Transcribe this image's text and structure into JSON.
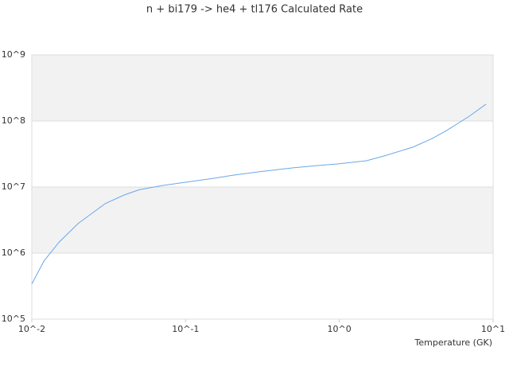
{
  "chart_data": {
    "type": "line",
    "title": "n + bi179 -> he4 + tl176 Calculated Rate",
    "x_label": "Temperature (GK)",
    "x_log": true,
    "y_log": true,
    "grid": true,
    "band_color": "#f2f2f2",
    "xlim": [
      0.01,
      10
    ],
    "xticks": [
      {
        "value": 0.01,
        "label": "10^-2"
      },
      {
        "value": 0.1,
        "label": "10^-1"
      },
      {
        "value": 1,
        "label": "10^0"
      },
      {
        "value": 10,
        "label": "10^1"
      }
    ],
    "ylim": [
      100000,
      1000000000
    ],
    "yticks": [
      {
        "value": 100000,
        "label": "10^5"
      },
      {
        "value": 1000000,
        "label": "10^6"
      },
      {
        "value": 10000000,
        "label": "10^7"
      },
      {
        "value": 100000000,
        "label": "10^8"
      },
      {
        "value": 1000000000,
        "label": "10^9"
      }
    ],
    "x": [
      0.01,
      0.012,
      0.015,
      0.02,
      0.025,
      0.03,
      0.04,
      0.05,
      0.07,
      0.1,
      0.15,
      0.2,
      0.3,
      0.5,
      0.7,
      1,
      1.5,
      2,
      3,
      4,
      5,
      7,
      9
    ],
    "series": [
      {
        "color": "#6aa8e8",
        "values": [
          340000,
          760000,
          1450000,
          2800000,
          4100000,
          5600000,
          7600000,
          9100000,
          10500000,
          11800000,
          13500000,
          15000000,
          17000000,
          19500000,
          21000000,
          22500000,
          25000000,
          30000000,
          40000000,
          54000000,
          72000000,
          118000000,
          180000000
        ]
      }
    ]
  }
}
